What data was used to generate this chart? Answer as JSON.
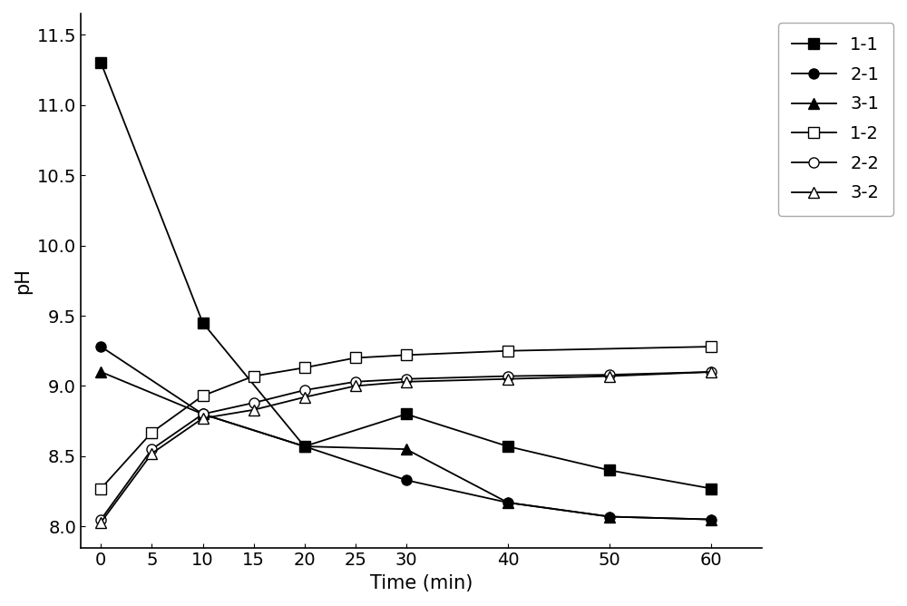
{
  "x": [
    0,
    5,
    10,
    15,
    20,
    25,
    30,
    40,
    50,
    60
  ],
  "series": {
    "1-1": {
      "y": [
        11.3,
        null,
        9.45,
        null,
        8.57,
        null,
        8.8,
        8.57,
        8.4,
        8.27
      ],
      "marker": "s",
      "filled": true,
      "color": "#000000"
    },
    "2-1": {
      "y": [
        9.28,
        null,
        8.8,
        null,
        8.57,
        null,
        8.33,
        8.17,
        8.07,
        8.05
      ],
      "marker": "o",
      "filled": true,
      "color": "#000000"
    },
    "3-1": {
      "y": [
        9.1,
        null,
        8.8,
        null,
        8.57,
        null,
        8.55,
        8.17,
        8.07,
        8.05
      ],
      "marker": "^",
      "filled": true,
      "color": "#000000"
    },
    "1-2": {
      "y": [
        8.27,
        8.67,
        8.93,
        9.07,
        9.13,
        9.2,
        9.22,
        9.25,
        null,
        9.28
      ],
      "marker": "s",
      "filled": false,
      "color": "#000000"
    },
    "2-2": {
      "y": [
        8.05,
        8.55,
        8.8,
        8.88,
        8.97,
        9.03,
        9.05,
        9.07,
        9.08,
        9.1
      ],
      "marker": "o",
      "filled": false,
      "color": "#000000"
    },
    "3-2": {
      "y": [
        8.03,
        8.52,
        8.77,
        8.83,
        8.92,
        9.0,
        9.03,
        9.05,
        9.07,
        9.1
      ],
      "marker": "^",
      "filled": false,
      "color": "#000000"
    }
  },
  "xlabel": "Time (min)",
  "ylabel": "pH",
  "xlim": [
    -2,
    65
  ],
  "ylim": [
    7.85,
    11.65
  ],
  "xticks": [
    0,
    5,
    10,
    15,
    20,
    25,
    30,
    40,
    50,
    60
  ],
  "yticks": [
    8.0,
    8.5,
    9.0,
    9.5,
    10.0,
    10.5,
    11.0,
    11.5
  ],
  "marker_size": 8,
  "line_width": 1.3,
  "font_size": 15,
  "tick_fontsize": 14
}
